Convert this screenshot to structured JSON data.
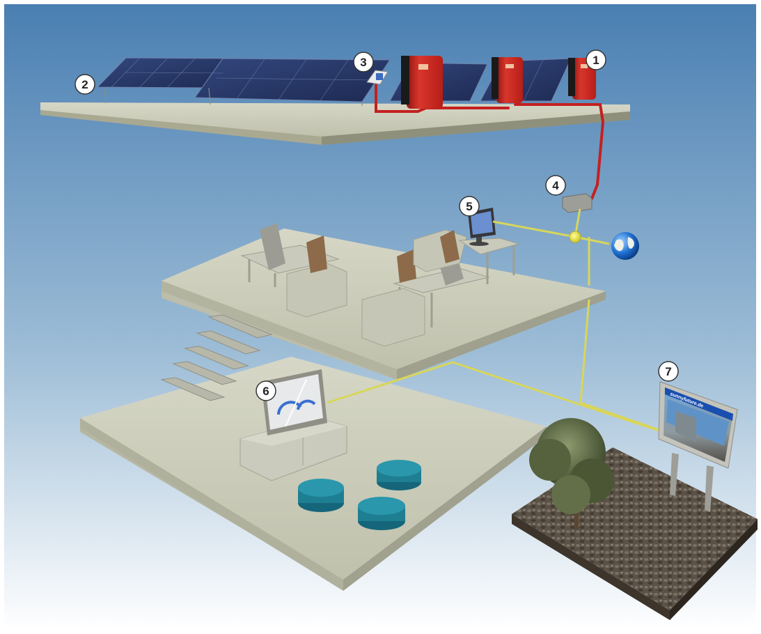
{
  "markers": [
    {
      "label": "1"
    },
    {
      "label": "2"
    },
    {
      "label": "3"
    },
    {
      "label": "4"
    },
    {
      "label": "5"
    },
    {
      "label": "6"
    },
    {
      "label": "7"
    }
  ],
  "billboard": {
    "header_text": "sunnyfuture.de"
  },
  "colors": {
    "sky_top": "#4a7fb2",
    "sky_bottom": "#ffffff",
    "floor": "#cfd0bd",
    "inverter": "#c8261f",
    "power_cable": "#c42020",
    "data_cable": "#d8d65a",
    "furniture": "#b9b9a8",
    "ottoman": "#1f7f92",
    "solar_panel": "#2a3b6b"
  },
  "icons": [
    "globe-icon",
    "network-hub-icon"
  ]
}
